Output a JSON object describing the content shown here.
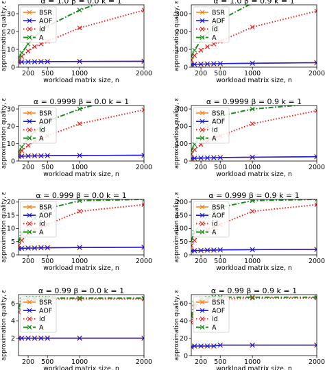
{
  "figure": {
    "legend_placement": "upper-left",
    "grid": false,
    "colors": {
      "BSR": "#ff7f0e",
      "AOF": "#1f1fd6",
      "id": "#e8231f",
      "A": "#1a8a1a"
    },
    "legend_labels": [
      "BSR",
      "AOF",
      "id",
      "A"
    ]
  },
  "chart_data": [
    {
      "type": "line",
      "title": "α = 1.0   β = 0.0   k = 1",
      "xlabel": "workload matrix size, n",
      "ylabel": "approximation quality, ε",
      "xlim": [
        50,
        2000
      ],
      "ylim": [
        0,
        35
      ],
      "x_ticks": [
        200,
        500,
        1000,
        2000
      ],
      "y_ticks": [
        0,
        10,
        20,
        30
      ],
      "show_xlabel": true,
      "show_ylabel": true,
      "series": [
        {
          "name": "BSR",
          "x": [
            50,
            100,
            200,
            300,
            400,
            500,
            1000,
            2000
          ],
          "y": [
            2.8,
            2.9,
            3.0,
            3.0,
            3.1,
            3.1,
            3.2,
            3.3
          ]
        },
        {
          "name": "AOF",
          "x": [
            50,
            100,
            200,
            300,
            400,
            500,
            1000,
            2000
          ],
          "y": [
            2.8,
            2.9,
            3.0,
            3.0,
            3.1,
            3.1,
            3.2,
            3.3
          ]
        },
        {
          "name": "id",
          "x": [
            50,
            100,
            200,
            300,
            400,
            500,
            1000,
            2000
          ],
          "y": [
            3.5,
            6.0,
            9.0,
            11.5,
            13.0,
            14.5,
            22.0,
            32.0
          ]
        },
        {
          "name": "A",
          "x": [
            50,
            100,
            200,
            300,
            400,
            500,
            1000,
            2000
          ],
          "y": [
            5.0,
            8.0,
            13.0,
            17.0,
            20.0,
            23.0,
            32.0,
            45.0
          ]
        }
      ]
    },
    {
      "type": "line",
      "title": "α = 1.0   β = 0.9   k = 1",
      "xlabel": "workload matrix size, n",
      "ylabel": "approximation quality, ε",
      "xlim": [
        50,
        2000
      ],
      "ylim": [
        0,
        350
      ],
      "x_ticks": [
        200,
        500,
        1000,
        2000
      ],
      "y_ticks": [
        0,
        100,
        200,
        300
      ],
      "show_xlabel": true,
      "show_ylabel": true,
      "series": [
        {
          "name": "BSR",
          "x": [
            50,
            100,
            200,
            300,
            400,
            500,
            1000,
            2000
          ],
          "y": [
            15,
            16,
            17,
            18,
            19,
            20,
            22,
            25
          ]
        },
        {
          "name": "AOF",
          "x": [
            50,
            100,
            200,
            300,
            400,
            500,
            1000,
            2000
          ],
          "y": [
            15,
            16,
            17,
            18,
            19,
            20,
            22,
            25
          ]
        },
        {
          "name": "id",
          "x": [
            50,
            100,
            200,
            300,
            400,
            500,
            1000,
            2000
          ],
          "y": [
            40,
            65,
            95,
            115,
            130,
            145,
            225,
            315
          ]
        },
        {
          "name": "A",
          "x": [
            50,
            100,
            200,
            300,
            400,
            500,
            1000,
            2000
          ],
          "y": [
            60,
            95,
            150,
            190,
            230,
            265,
            360,
            480
          ]
        }
      ]
    },
    {
      "type": "line",
      "title": "α = 0.9999   β = 0.0   k = 1",
      "xlabel": "workload matrix size, n",
      "ylabel": "approximation quality, ε",
      "xlim": [
        50,
        2000
      ],
      "ylim": [
        0,
        32
      ],
      "x_ticks": [
        200,
        500,
        1000,
        2000
      ],
      "y_ticks": [
        0,
        10,
        20,
        30
      ],
      "show_xlabel": true,
      "show_ylabel": true,
      "series": [
        {
          "name": "BSR",
          "x": [
            50,
            100,
            200,
            300,
            400,
            500,
            1000,
            2000
          ],
          "y": [
            2.7,
            2.8,
            2.9,
            3.0,
            3.0,
            3.1,
            3.2,
            3.3
          ]
        },
        {
          "name": "AOF",
          "x": [
            50,
            100,
            200,
            300,
            400,
            500,
            1000,
            2000
          ],
          "y": [
            2.7,
            2.8,
            2.9,
            3.0,
            3.0,
            3.1,
            3.2,
            3.3
          ]
        },
        {
          "name": "id",
          "x": [
            50,
            100,
            200,
            300,
            400,
            500,
            1000,
            2000
          ],
          "y": [
            3.5,
            6.0,
            9.0,
            11.5,
            13.0,
            14.5,
            21.5,
            29.5
          ]
        },
        {
          "name": "A",
          "x": [
            50,
            100,
            200,
            300,
            400,
            500,
            1000,
            2000
          ],
          "y": [
            5.0,
            8.0,
            13.0,
            17.0,
            20.0,
            23.0,
            30.0,
            40.0
          ]
        }
      ]
    },
    {
      "type": "line",
      "title": "α = 0.9999   β = 0.9   k = 1",
      "xlabel": "workload matrix size, n",
      "ylabel": "approximation quality, ε",
      "xlim": [
        50,
        2000
      ],
      "ylim": [
        0,
        320
      ],
      "x_ticks": [
        200,
        500,
        1000,
        2000
      ],
      "y_ticks": [
        0,
        100,
        200,
        300
      ],
      "show_xlabel": true,
      "show_ylabel": true,
      "series": [
        {
          "name": "BSR",
          "x": [
            50,
            100,
            200,
            300,
            400,
            500,
            1000,
            2000
          ],
          "y": [
            15,
            16,
            17,
            18,
            19,
            20,
            22,
            25
          ]
        },
        {
          "name": "AOF",
          "x": [
            50,
            100,
            200,
            300,
            400,
            500,
            1000,
            2000
          ],
          "y": [
            15,
            16,
            17,
            18,
            19,
            20,
            22,
            25
          ]
        },
        {
          "name": "id",
          "x": [
            50,
            100,
            200,
            300,
            400,
            500,
            1000,
            2000
          ],
          "y": [
            40,
            65,
            95,
            115,
            130,
            145,
            215,
            290
          ]
        },
        {
          "name": "A",
          "x": [
            50,
            100,
            200,
            300,
            400,
            500,
            1000,
            2000
          ],
          "y": [
            60,
            95,
            150,
            190,
            230,
            260,
            300,
            330
          ]
        }
      ]
    },
    {
      "type": "line",
      "title": "α = 0.999   β = 0.0   k = 1",
      "xlabel": "workload matrix size, n",
      "ylabel": "approximation quality, ε",
      "xlim": [
        50,
        2000
      ],
      "ylim": [
        0,
        21
      ],
      "x_ticks": [
        200,
        500,
        1000,
        2000
      ],
      "y_ticks": [
        0,
        5,
        10,
        15,
        20
      ],
      "show_xlabel": true,
      "show_ylabel": true,
      "series": [
        {
          "name": "BSR",
          "x": [
            50,
            100,
            200,
            300,
            400,
            500,
            1000,
            2000
          ],
          "y": [
            2.4,
            2.5,
            2.6,
            2.6,
            2.7,
            2.7,
            2.8,
            2.9
          ]
        },
        {
          "name": "AOF",
          "x": [
            50,
            100,
            200,
            300,
            400,
            500,
            1000,
            2000
          ],
          "y": [
            2.4,
            2.5,
            2.6,
            2.6,
            2.7,
            2.7,
            2.8,
            2.9
          ]
        },
        {
          "name": "id",
          "x": [
            50,
            100,
            200,
            300,
            400,
            500,
            1000,
            2000
          ],
          "y": [
            3.5,
            5.5,
            8.0,
            9.5,
            10.5,
            11.5,
            16.5,
            19.0
          ]
        },
        {
          "name": "A",
          "x": [
            50,
            100,
            200,
            300,
            400,
            500,
            1000,
            2000
          ],
          "y": [
            5.0,
            8.0,
            11.5,
            14.0,
            16.0,
            17.5,
            20.5,
            21.0
          ]
        }
      ]
    },
    {
      "type": "line",
      "title": "α = 0.999   β = 0.9   k = 1",
      "xlabel": "workload matrix size, n",
      "ylabel": "approximation quality, ε",
      "xlim": [
        50,
        2000
      ],
      "ylim": [
        0,
        210
      ],
      "x_ticks": [
        200,
        500,
        1000,
        2000
      ],
      "y_ticks": [
        0,
        50,
        100,
        150,
        200
      ],
      "show_xlabel": true,
      "show_ylabel": true,
      "series": [
        {
          "name": "BSR",
          "x": [
            50,
            100,
            200,
            300,
            400,
            500,
            1000,
            2000
          ],
          "y": [
            15,
            16,
            17,
            18,
            18,
            19,
            20,
            21
          ]
        },
        {
          "name": "AOF",
          "x": [
            50,
            100,
            200,
            300,
            400,
            500,
            1000,
            2000
          ],
          "y": [
            15,
            16,
            17,
            18,
            18,
            19,
            20,
            21
          ]
        },
        {
          "name": "id",
          "x": [
            50,
            100,
            200,
            300,
            400,
            500,
            1000,
            2000
          ],
          "y": [
            35,
            55,
            80,
            95,
            105,
            115,
            165,
            190
          ]
        },
        {
          "name": "A",
          "x": [
            50,
            100,
            200,
            300,
            400,
            500,
            1000,
            2000
          ],
          "y": [
            55,
            85,
            120,
            145,
            165,
            180,
            205,
            210
          ]
        }
      ]
    },
    {
      "type": "line",
      "title": "α = 0.99   β = 0.0   k = 1",
      "xlabel": "workload matrix size, n",
      "ylabel": "approximation quality, ε",
      "xlim": [
        50,
        2000
      ],
      "ylim": [
        0,
        7
      ],
      "x_ticks": [
        200,
        500,
        1000,
        2000
      ],
      "y_ticks": [
        2,
        4,
        6
      ],
      "show_xlabel": true,
      "show_ylabel": true,
      "series": [
        {
          "name": "BSR",
          "x": [
            50,
            100,
            200,
            300,
            400,
            500,
            1000,
            2000
          ],
          "y": [
            2.0,
            2.0,
            2.0,
            2.0,
            2.0,
            2.0,
            2.0,
            2.0
          ]
        },
        {
          "name": "AOF",
          "x": [
            50,
            100,
            200,
            300,
            400,
            500,
            1000,
            2000
          ],
          "y": [
            2.0,
            2.0,
            2.0,
            2.0,
            2.0,
            2.0,
            2.0,
            2.0
          ]
        },
        {
          "name": "id",
          "x": [
            50,
            100,
            200,
            300,
            400,
            500,
            1000,
            2000
          ],
          "y": [
            5.0,
            6.0,
            6.3,
            6.4,
            6.5,
            6.5,
            6.5,
            6.5
          ]
        },
        {
          "name": "A",
          "x": [
            50,
            100,
            200,
            300,
            400,
            500,
            1000,
            2000
          ],
          "y": [
            5.5,
            6.4,
            6.6,
            6.6,
            6.6,
            6.6,
            6.6,
            6.6
          ]
        }
      ]
    },
    {
      "type": "line",
      "title": "α = 0.99   β = 0.9   k = 1",
      "xlabel": "workload matrix size, n",
      "ylabel": "approximation quality, ε",
      "xlim": [
        50,
        2000
      ],
      "ylim": [
        0,
        70
      ],
      "x_ticks": [
        200,
        500,
        1000,
        2000
      ],
      "y_ticks": [
        0,
        20,
        40,
        60
      ],
      "show_xlabel": true,
      "show_ylabel": true,
      "series": [
        {
          "name": "BSR",
          "x": [
            50,
            100,
            200,
            300,
            400,
            500,
            1000,
            2000
          ],
          "y": [
            10,
            11,
            11,
            11,
            11,
            12,
            12,
            12
          ]
        },
        {
          "name": "AOF",
          "x": [
            50,
            100,
            200,
            300,
            400,
            500,
            1000,
            2000
          ],
          "y": [
            10,
            11,
            11,
            11,
            11,
            12,
            12,
            12
          ]
        },
        {
          "name": "id",
          "x": [
            50,
            100,
            200,
            300,
            400,
            500,
            1000,
            2000
          ],
          "y": [
            38,
            55,
            62,
            64,
            65,
            65,
            66,
            66
          ]
        },
        {
          "name": "A",
          "x": [
            50,
            100,
            200,
            300,
            400,
            500,
            1000,
            2000
          ],
          "y": [
            45,
            60,
            65,
            66,
            67,
            67,
            67,
            67
          ]
        }
      ]
    }
  ]
}
